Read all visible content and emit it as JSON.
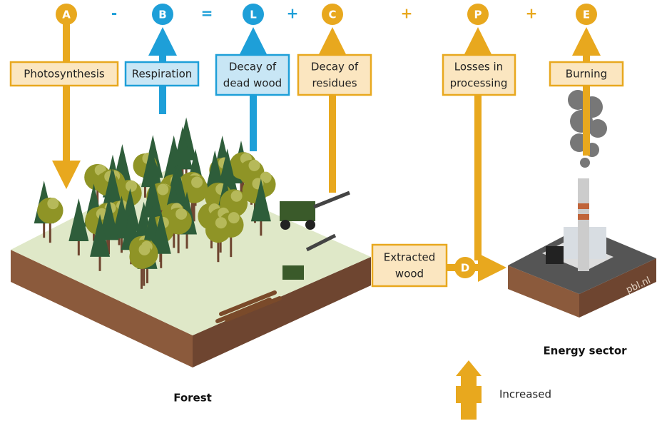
{
  "terms": [
    "A",
    "B",
    "L",
    "C",
    "P",
    "E"
  ],
  "operators": [
    "-",
    "=",
    "+",
    "+",
    "+"
  ],
  "boxes": [
    [
      "Photosynthesis"
    ],
    [
      "Respiration"
    ],
    [
      "Decay of",
      "dead wood"
    ],
    [
      "Decay of",
      "residues"
    ],
    [
      "Losses in",
      "processing"
    ],
    [
      "Burning"
    ],
    [
      "Extracted",
      "wood"
    ]
  ],
  "extracted_symbol": "D",
  "captions": {
    "forest": "Forest",
    "energy": "Energy sector",
    "source": "pbl.nl"
  },
  "legend": "Increased"
}
